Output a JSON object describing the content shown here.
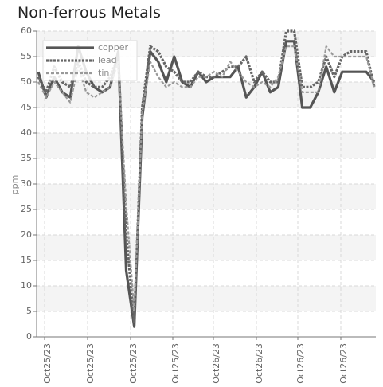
{
  "chart_data": {
    "type": "line",
    "title": "Non-ferrous Metals",
    "ylabel": "ppm",
    "xlabel": "",
    "ylim": [
      0,
      60
    ],
    "yticks": [
      0,
      5,
      10,
      15,
      20,
      25,
      30,
      35,
      40,
      45,
      50,
      55,
      60
    ],
    "x_tick_labels": [
      "Oct25/23",
      "Oct25/23",
      "Oct25/23",
      "Oct25/23",
      "Oct26/23",
      "Oct26/23",
      "Oct26/23",
      "Oct26/23"
    ],
    "grid": true,
    "legend_position": "top-left",
    "colors": {
      "copper": "#555555",
      "lead": "#666666",
      "tin": "#999999"
    },
    "series": [
      {
        "name": "copper",
        "values": [
          52,
          47,
          51,
          48,
          47,
          57,
          52,
          49,
          48,
          49,
          56,
          13,
          2,
          43,
          56,
          54,
          50,
          55,
          50,
          49,
          52,
          50,
          51,
          51,
          51,
          53,
          47,
          49,
          52,
          48,
          49,
          58,
          58,
          45,
          45,
          48,
          53,
          48,
          52,
          52,
          52,
          52,
          50
        ]
      },
      {
        "name": "lead",
        "values": [
          51,
          48,
          53,
          50,
          49,
          54,
          50,
          49,
          49,
          51,
          55,
          20,
          3,
          45,
          57,
          56,
          53,
          52,
          50,
          50,
          52,
          51,
          51,
          52,
          53,
          53,
          55,
          50,
          52,
          50,
          50,
          60,
          60,
          49,
          49,
          50,
          55,
          51,
          55,
          56,
          56,
          56,
          49
        ]
      },
      {
        "name": "tin",
        "values": [
          50,
          47,
          50,
          48,
          46,
          53,
          48,
          47,
          48,
          49,
          54,
          26,
          5,
          44,
          54,
          51,
          49,
          50,
          49,
          49,
          51,
          51,
          52,
          51,
          54,
          52,
          50,
          49,
          50,
          49,
          51,
          57,
          57,
          48,
          48,
          48,
          57,
          55,
          55,
          55,
          55,
          55,
          49
        ]
      }
    ]
  }
}
